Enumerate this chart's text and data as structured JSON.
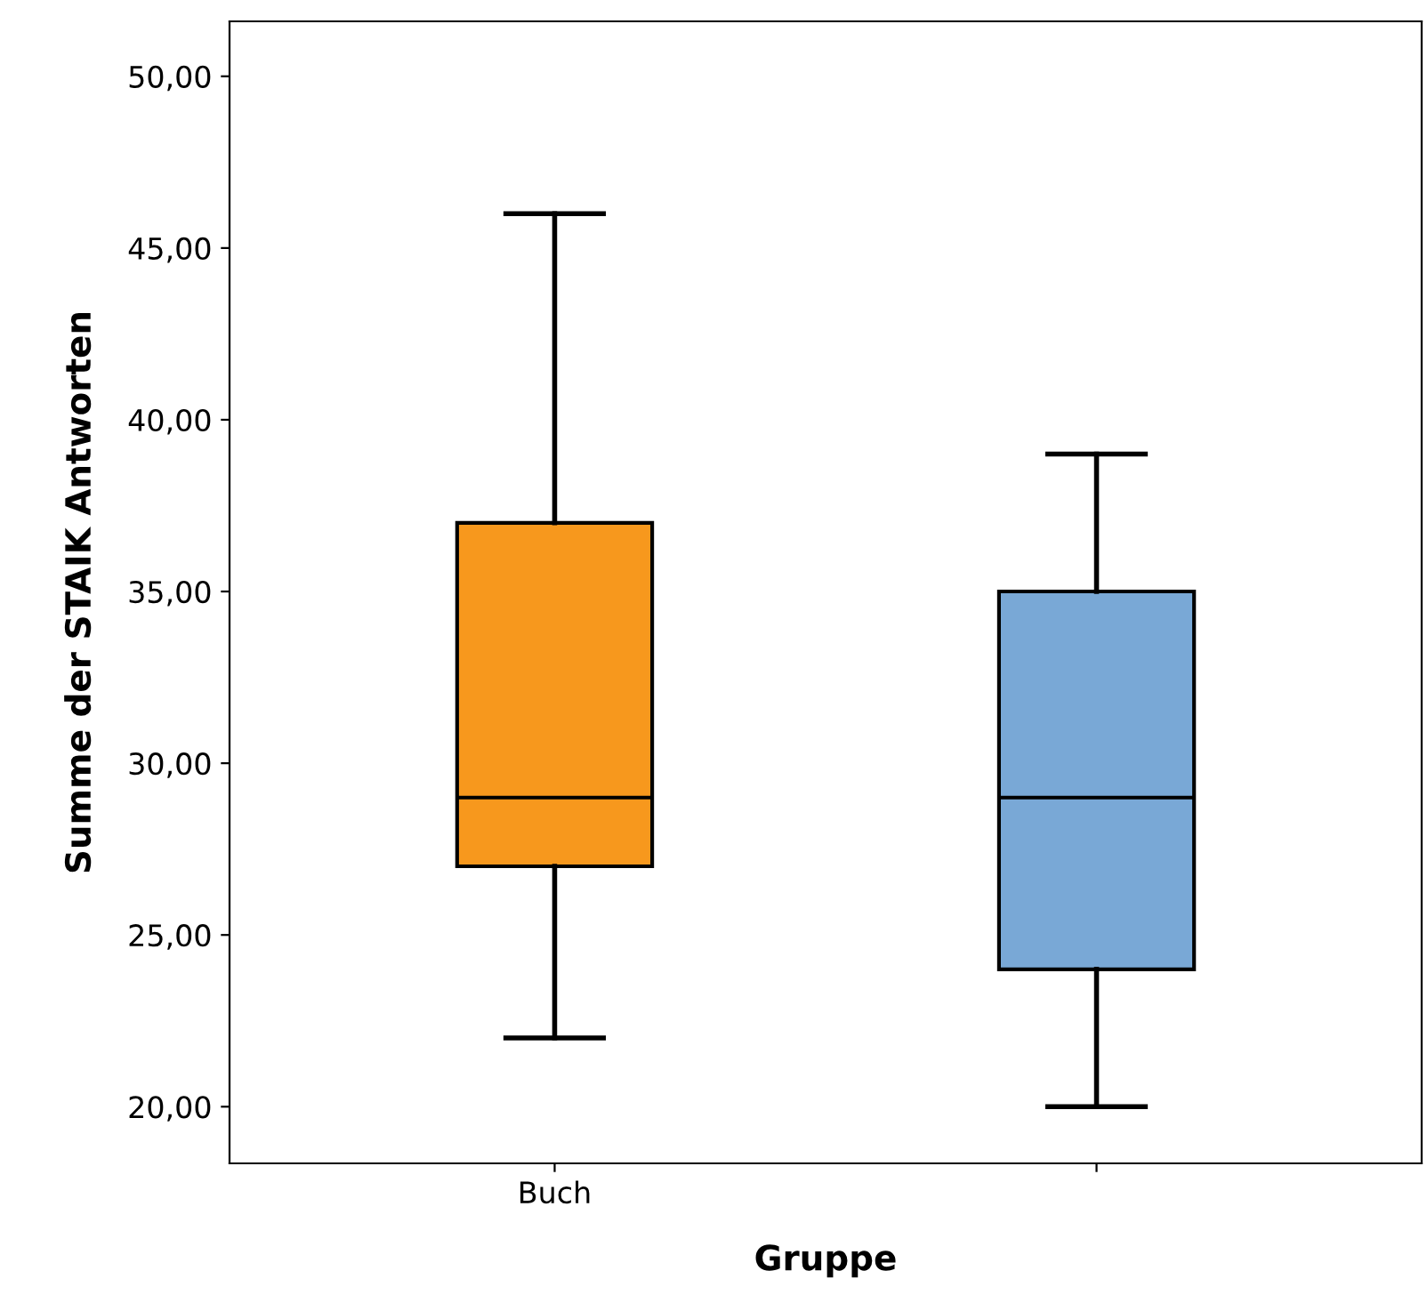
{
  "chart_data": {
    "type": "box",
    "xlabel": "Gruppe",
    "ylabel": "Summe der STAIK Antworten",
    "categories": [
      "Buch",
      null
    ],
    "colors": [
      "#f7981d",
      "#79a8d6"
    ],
    "boxes": [
      {
        "low": 22,
        "q1": 27,
        "median": 29,
        "q3": 37,
        "high": 46
      },
      {
        "low": 20,
        "q1": 24,
        "median": 29,
        "q3": 35,
        "high": 39
      }
    ],
    "ylim": [
      18.35,
      51.6
    ],
    "yticks": [
      {
        "value": 20,
        "label": "20,00"
      },
      {
        "value": 25,
        "label": "25,00"
      },
      {
        "value": 30,
        "label": "30,00"
      },
      {
        "value": 35,
        "label": "35,00"
      },
      {
        "value": 40,
        "label": "40,00"
      },
      {
        "value": 45,
        "label": "45,00"
      },
      {
        "value": 50,
        "label": "50,00"
      }
    ],
    "grid": false
  }
}
